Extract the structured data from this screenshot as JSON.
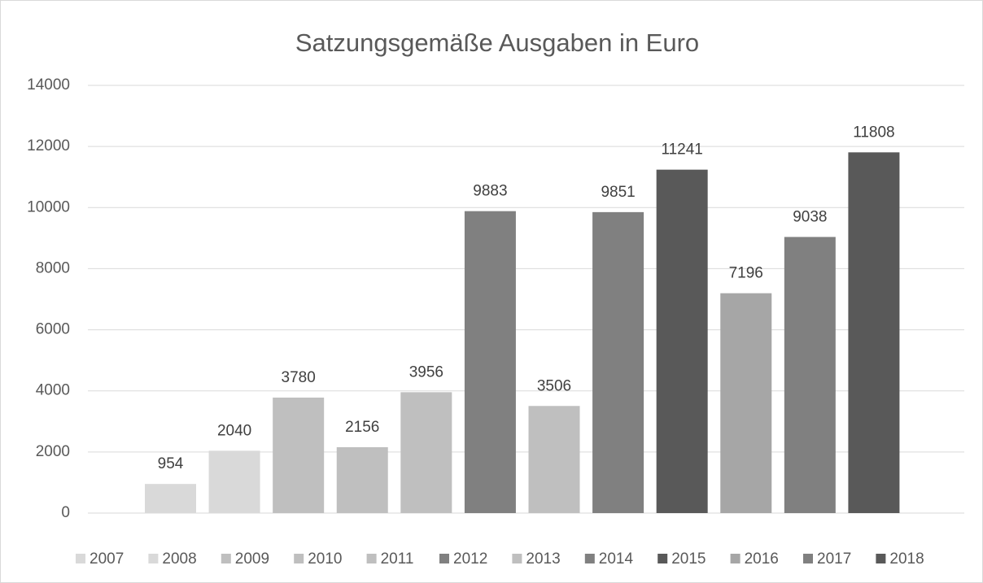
{
  "chart_data": {
    "type": "bar",
    "title": "Satzungsgemäße Ausgaben in Euro",
    "categories": [
      null
    ],
    "series": [
      {
        "name": "2007",
        "color": "#d9d9d9",
        "values": [
          954
        ]
      },
      {
        "name": "2008",
        "color": "#d9d9d9",
        "values": [
          2040
        ]
      },
      {
        "name": "2009",
        "color": "#bfbfbf",
        "values": [
          3780
        ]
      },
      {
        "name": "2010",
        "color": "#bfbfbf",
        "values": [
          2156
        ]
      },
      {
        "name": "2011",
        "color": "#bfbfbf",
        "values": [
          3956
        ]
      },
      {
        "name": "2012",
        "color": "#808080",
        "values": [
          9883
        ]
      },
      {
        "name": "2013",
        "color": "#bfbfbf",
        "values": [
          3506
        ]
      },
      {
        "name": "2014",
        "color": "#808080",
        "values": [
          9851
        ]
      },
      {
        "name": "2015",
        "color": "#595959",
        "values": [
          11241
        ]
      },
      {
        "name": "2016",
        "color": "#a6a6a6",
        "values": [
          7196
        ]
      },
      {
        "name": "2017",
        "color": "#808080",
        "values": [
          9038
        ]
      },
      {
        "name": "2018",
        "color": "#595959",
        "values": [
          11808
        ]
      }
    ],
    "ylim": [
      0,
      14000
    ],
    "yticks": [
      0,
      2000,
      4000,
      6000,
      8000,
      10000,
      12000,
      14000
    ],
    "grid": true,
    "legend": "bottom"
  }
}
